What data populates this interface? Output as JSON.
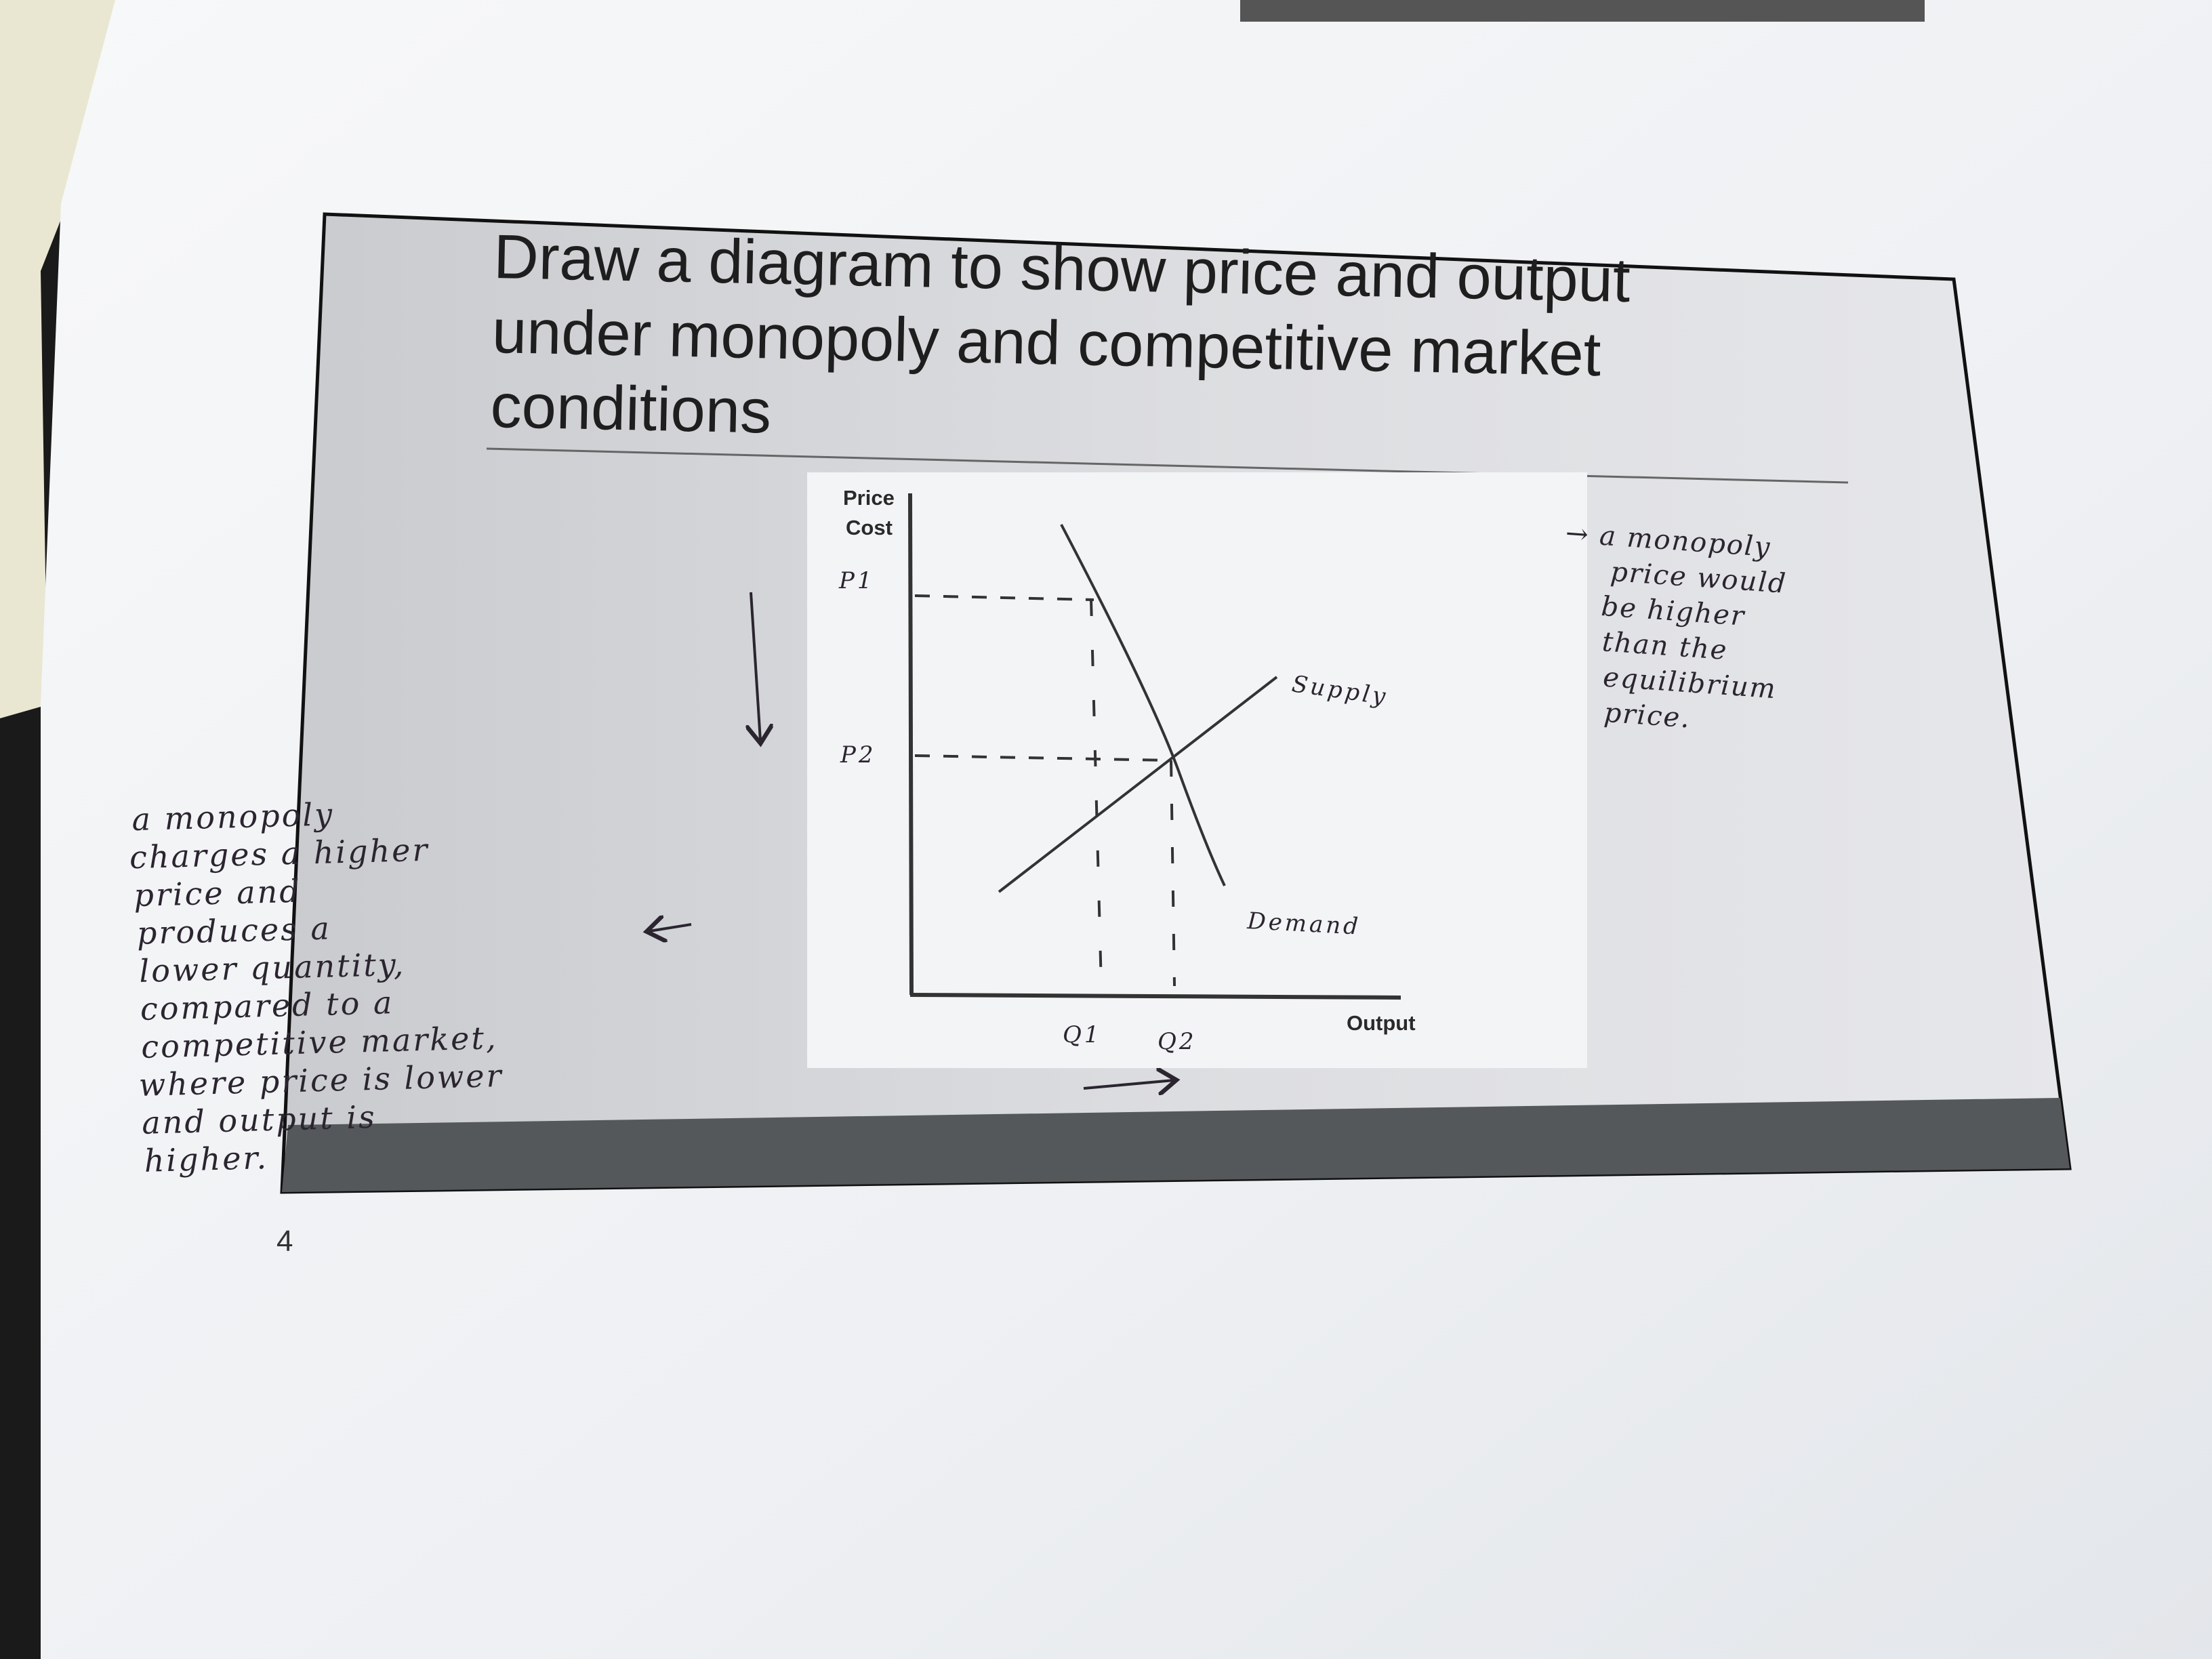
{
  "slide": {
    "title_lines": [
      "Draw a diagram to show price and output",
      "under monopoly and competitive market",
      "conditions"
    ],
    "page_number": "4"
  },
  "diagram": {
    "y_axis_label_line1": "Price",
    "y_axis_label_line2": "Cost",
    "x_axis_label": "Output",
    "handwritten_labels": {
      "p1": "P1",
      "p2": "P2",
      "q1": "Q1",
      "q2": "Q2",
      "supply": "Supply",
      "demand": "Demand"
    }
  },
  "annotations": {
    "left_note_lines": [
      "a monopoly",
      "charges a higher",
      "price and",
      "produces a",
      "lower quantity,",
      "compared to a",
      "competitive market,",
      "where price is lower",
      "and output is",
      "higher."
    ],
    "right_note_lines": [
      "→ a monopoly",
      "price would",
      "be higher",
      "than the",
      "equilibrium",
      "price."
    ]
  },
  "colors": {
    "paper": "#f4f5f7",
    "slide_bg": "#d9dadd",
    "slide_band": "#55585a",
    "ink": "#2b2530"
  }
}
